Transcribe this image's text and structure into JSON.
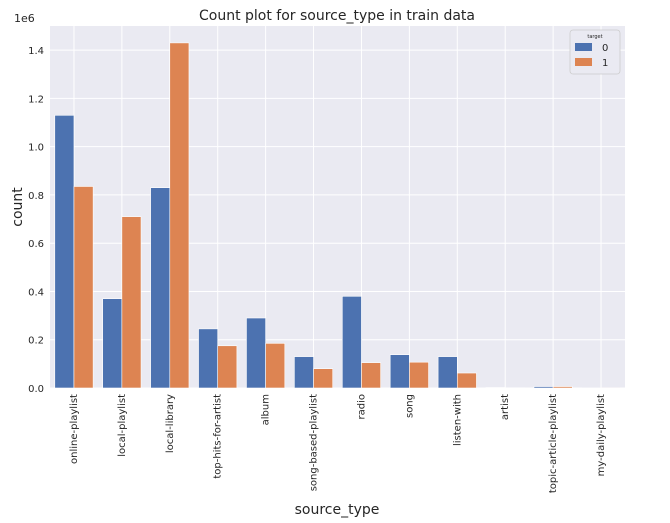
{
  "chart_data": {
    "type": "bar",
    "title": "Count plot for source_type in train data",
    "xlabel": "source_type",
    "ylabel": "count",
    "y_scale_label": "1e6",
    "ylim": [
      0,
      1.5
    ],
    "yticks": [
      0.0,
      0.2,
      0.4,
      0.6,
      0.8,
      1.0,
      1.2,
      1.4
    ],
    "ytick_labels": [
      "0.0",
      "0.2",
      "0.4",
      "0.6",
      "0.8",
      "1.0",
      "1.2",
      "1.4"
    ],
    "categories": [
      "online-playlist",
      "local-playlist",
      "local-library",
      "top-hits-for-artist",
      "album",
      "song-based-playlist",
      "radio",
      "song",
      "listen-with",
      "artist",
      "topic-article-playlist",
      "my-daily-playlist"
    ],
    "legend": {
      "title": "target",
      "position": "top-right"
    },
    "grid": true,
    "series": [
      {
        "name": "0",
        "color": "#4c72b0",
        "values": [
          1.13,
          0.37,
          0.83,
          0.245,
          0.29,
          0.13,
          0.38,
          0.138,
          0.13,
          0.002,
          0.006,
          0.0005
        ]
      },
      {
        "name": "1",
        "color": "#dd8452",
        "values": [
          0.835,
          0.71,
          1.43,
          0.175,
          0.185,
          0.08,
          0.105,
          0.107,
          0.062,
          0.001,
          0.006,
          0.0003
        ]
      }
    ]
  }
}
